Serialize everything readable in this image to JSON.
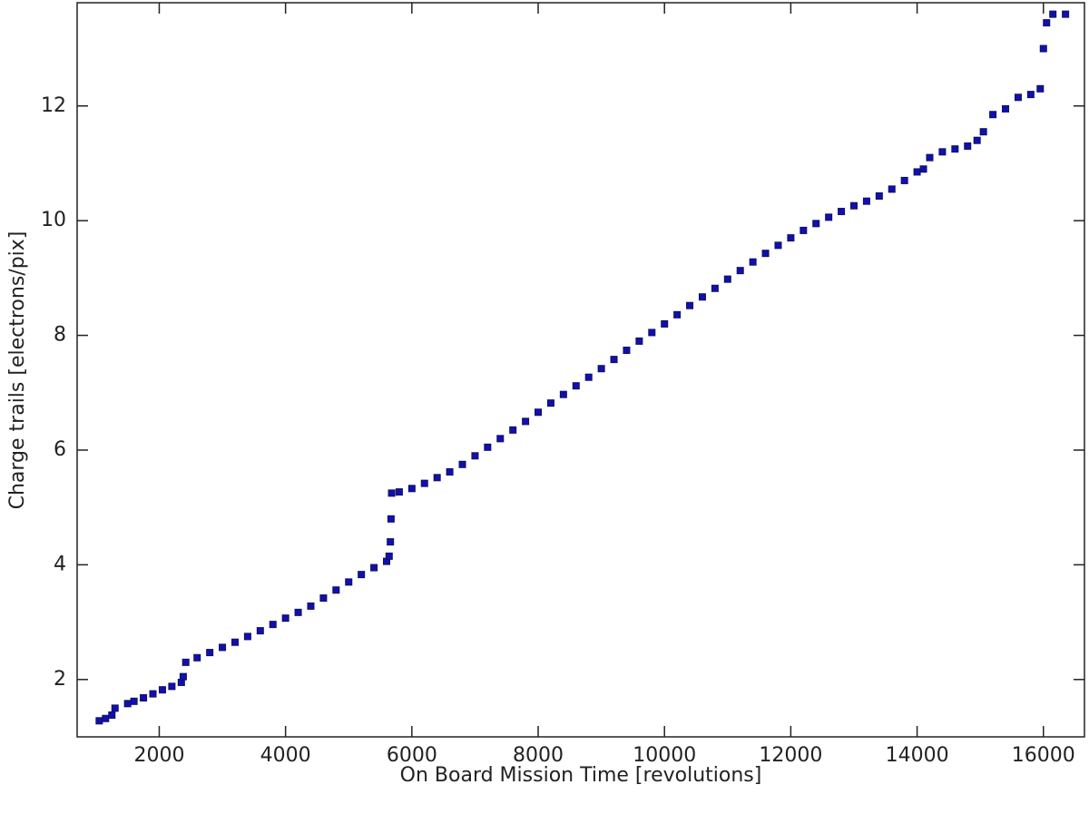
{
  "chart_data": {
    "type": "scatter",
    "xlabel": "On Board Mission Time [revolutions]",
    "ylabel": "Charge trails [electrons/pix]",
    "color": "#1010b0",
    "xlim": [
      700,
      16650
    ],
    "ylim": [
      1.0,
      13.8
    ],
    "xticks": [
      2000,
      4000,
      6000,
      8000,
      10000,
      12000,
      14000,
      16000
    ],
    "yticks": [
      2,
      4,
      6,
      8,
      10,
      12
    ],
    "x": [
      1050,
      1150,
      1250,
      1300,
      1500,
      1600,
      1750,
      1900,
      2050,
      2200,
      2350,
      2380,
      2420,
      2600,
      2800,
      3000,
      3200,
      3400,
      3600,
      3800,
      4000,
      4200,
      4400,
      4600,
      4800,
      5000,
      5200,
      5400,
      5600,
      5640,
      5660,
      5670,
      5680,
      5800,
      6000,
      6200,
      6400,
      6600,
      6800,
      7000,
      7200,
      7400,
      7600,
      7800,
      8000,
      8200,
      8400,
      8600,
      8800,
      9000,
      9200,
      9400,
      9600,
      9800,
      10000,
      10200,
      10400,
      10600,
      10800,
      11000,
      11200,
      11400,
      11600,
      11800,
      12000,
      12200,
      12400,
      12600,
      12800,
      13000,
      13200,
      13400,
      13600,
      13800,
      14000,
      14100,
      14200,
      14400,
      14600,
      14800,
      14950,
      15050,
      15200,
      15400,
      15600,
      15800,
      15950,
      16000,
      16050,
      16150,
      16350
    ],
    "values": [
      1.28,
      1.32,
      1.38,
      1.5,
      1.58,
      1.62,
      1.68,
      1.75,
      1.82,
      1.88,
      1.95,
      2.05,
      2.3,
      2.38,
      2.47,
      2.56,
      2.65,
      2.75,
      2.85,
      2.96,
      3.07,
      3.17,
      3.28,
      3.42,
      3.56,
      3.7,
      3.83,
      3.95,
      4.06,
      4.15,
      4.4,
      4.8,
      5.25,
      5.27,
      5.33,
      5.42,
      5.52,
      5.62,
      5.75,
      5.9,
      6.05,
      6.2,
      6.35,
      6.5,
      6.66,
      6.82,
      6.97,
      7.12,
      7.27,
      7.42,
      7.58,
      7.74,
      7.9,
      8.05,
      8.2,
      8.36,
      8.52,
      8.67,
      8.82,
      8.98,
      9.13,
      9.28,
      9.43,
      9.57,
      9.7,
      9.83,
      9.95,
      10.06,
      10.16,
      10.26,
      10.34,
      10.43,
      10.55,
      10.7,
      10.85,
      10.9,
      11.1,
      11.2,
      11.25,
      11.3,
      11.4,
      11.55,
      11.85,
      11.95,
      12.15,
      12.2,
      12.3,
      13.0,
      13.45,
      13.6,
      13.6
    ]
  }
}
